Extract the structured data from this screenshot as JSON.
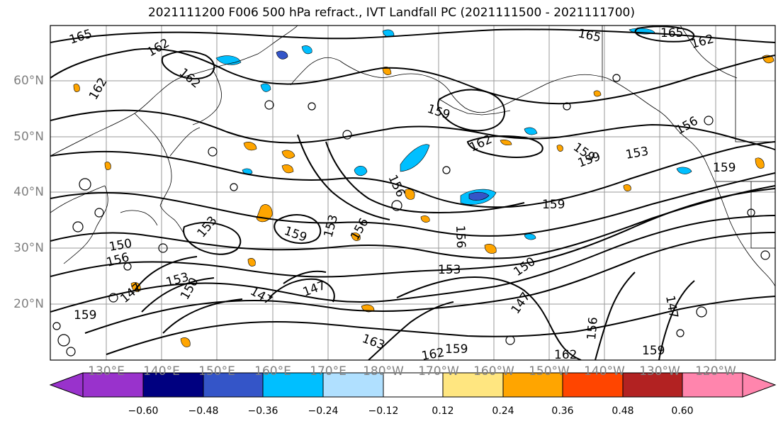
{
  "title": "2021111200 F006 500 hPa refract., IVT Landfall PC (2021111500 - 2021111700)",
  "lat_labels": [
    "60°N",
    "50°N",
    "40°N",
    "30°N",
    "20°N"
  ],
  "lon_labels": [
    "130°E",
    "140°E",
    "150°E",
    "160°E",
    "170°E",
    "180°W",
    "170°W",
    "160°W",
    "150°W",
    "140°W",
    "130°W",
    "120°W"
  ],
  "contour_labels": [
    "165",
    "162",
    "162",
    "162",
    "165",
    "165",
    "162",
    "159",
    "162",
    "159",
    "159",
    "156",
    "153",
    "156",
    "153",
    "159",
    "159",
    "156",
    "159",
    "156",
    "153",
    "153",
    "150",
    "147",
    "147",
    "147",
    "150",
    "156",
    "163",
    "159",
    "156",
    "147",
    "150",
    "153",
    "162",
    "159",
    "162",
    "159",
    "147"
  ],
  "colorbar": {
    "colors": [
      "#9932cc",
      "#000080",
      "#3455c8",
      "#00bfff",
      "#b0e0ff",
      "#ffffff",
      "#ffe680",
      "#ffa500",
      "#ff4500",
      "#b22222",
      "#ff85ad"
    ],
    "tick_labels": [
      "−0.60",
      "−0.48",
      "−0.36",
      "−0.24",
      "−0.12",
      "0.12",
      "0.24",
      "0.36",
      "0.48",
      "0.60"
    ]
  },
  "colors": {
    "contour": "#000000",
    "coast": "#000000",
    "grid": "#9a9a9a",
    "tick_label": "#808080"
  }
}
